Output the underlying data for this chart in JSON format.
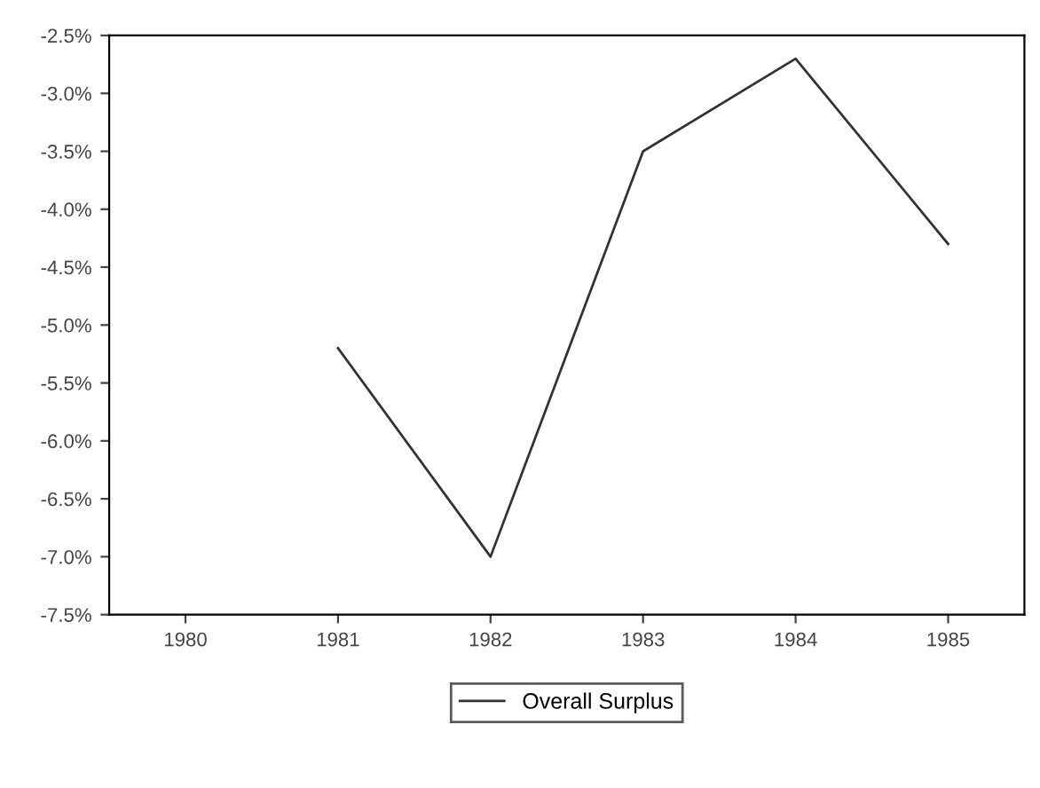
{
  "chart_data": {
    "type": "line",
    "categories": [
      "1980",
      "1981",
      "1982",
      "1983",
      "1984",
      "1985"
    ],
    "series": [
      {
        "name": "Overall Surplus",
        "color": "#333333",
        "values": [
          null,
          -5.2,
          -7.0,
          -3.5,
          -2.7,
          -4.3
        ]
      }
    ],
    "ylim": [
      -7.5,
      -2.5
    ],
    "yticks": [
      {
        "value": -7.5,
        "label": "-7.5%"
      },
      {
        "value": -7.0,
        "label": "-7.0%"
      },
      {
        "value": -6.5,
        "label": "-6.5%"
      },
      {
        "value": -6.0,
        "label": "-6.0%"
      },
      {
        "value": -5.5,
        "label": "-5.5%"
      },
      {
        "value": -5.0,
        "label": "-5.0%"
      },
      {
        "value": -4.5,
        "label": "-4.5%"
      },
      {
        "value": -4.0,
        "label": "-4.0%"
      },
      {
        "value": -3.5,
        "label": "-3.5%"
      },
      {
        "value": -3.0,
        "label": "-3.0%"
      },
      {
        "value": -2.5,
        "label": "-2.5%"
      }
    ],
    "grid": false,
    "legend": "bottom",
    "marker": "none",
    "line_style": "solid"
  }
}
